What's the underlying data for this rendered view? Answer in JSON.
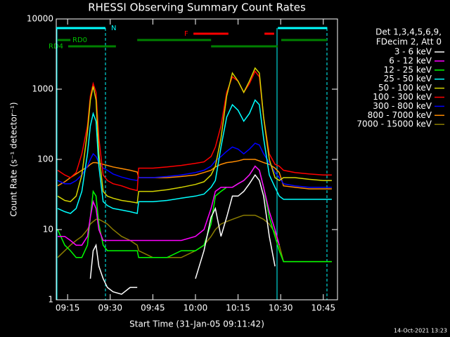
{
  "chart_data": {
    "type": "line",
    "title": "RHESSI Observing Summary Count Rates",
    "x_label": "Start Time (31-Jan-05 09:11:42)",
    "y_label": "Count Rate (s⁻¹ detector⁻¹)",
    "footer": "14-Oct-2021 13:23",
    "legend_title": [
      "Det 1,3,4,5,6,9,",
      "FDecim 2, Att 0"
    ],
    "log_y": true,
    "xlim": [
      11,
      110
    ],
    "ylim": [
      1,
      10000
    ],
    "xticks": [
      {
        "value": 15,
        "label": "09:15"
      },
      {
        "value": 30,
        "label": "09:30"
      },
      {
        "value": 45,
        "label": "09:45"
      },
      {
        "value": 60,
        "label": "10:00"
      },
      {
        "value": 75,
        "label": "10:15"
      },
      {
        "value": 90,
        "label": "10:30"
      },
      {
        "value": 105,
        "label": "10:45"
      }
    ],
    "yticks": [
      1,
      10,
      100,
      1000,
      10000
    ],
    "flags": [
      {
        "label": "N",
        "color": "#00ffff",
        "ranges": [
          [
            11,
            28.3
          ],
          [
            89,
            106.4
          ]
        ]
      },
      {
        "label": "F",
        "color": "#ff0000",
        "ranges": [
          [
            59.3,
            71.6
          ],
          [
            84.3,
            87.7
          ]
        ]
      },
      {
        "label": "RD0",
        "color": "#008000",
        "ranges": [
          [
            11.5,
            16
          ],
          [
            39.5,
            65.5
          ],
          [
            90.2,
            106.3
          ]
        ]
      },
      {
        "label": "RD4",
        "color": "#008000",
        "ranges": [
          [
            15.2,
            32
          ],
          [
            65.5,
            89
          ]
        ]
      }
    ],
    "x": [
      11.5,
      14,
      16,
      18,
      20,
      22,
      23,
      24,
      25,
      26,
      27.5,
      29,
      31,
      34,
      37,
      39.5,
      40,
      45,
      50,
      55,
      60,
      63,
      65.5,
      67,
      69,
      71,
      73,
      75,
      77,
      79,
      81,
      82.5,
      84,
      86,
      88,
      89.5,
      91,
      95,
      100,
      105,
      108
    ],
    "series": [
      {
        "name": "3 - 6 keV",
        "color": "#ffffff",
        "values": [
          null,
          null,
          null,
          null,
          null,
          null,
          2,
          5,
          6,
          3,
          2,
          1.5,
          1.3,
          1.2,
          1.5,
          1.5,
          null,
          null,
          1.5,
          null,
          2,
          5,
          15,
          20,
          8,
          15,
          30,
          30,
          35,
          45,
          60,
          50,
          30,
          8,
          3,
          null,
          null,
          null,
          null,
          null,
          null
        ]
      },
      {
        "name": "6 - 12 keV",
        "color": "#ff00ff",
        "values": [
          8,
          8,
          7,
          6,
          6,
          8,
          15,
          25,
          20,
          10,
          7,
          7,
          7,
          7,
          7,
          7,
          7,
          7,
          7,
          7,
          8,
          10,
          20,
          35,
          40,
          40,
          40,
          45,
          50,
          60,
          80,
          70,
          40,
          18,
          10,
          6,
          null,
          null,
          null,
          null,
          null
        ]
      },
      {
        "name": "12 - 25 keV",
        "color": "#00ff00",
        "values": [
          10,
          6,
          5,
          4,
          4,
          6,
          15,
          35,
          30,
          12,
          6,
          5,
          5,
          5,
          5,
          5,
          4,
          4,
          4,
          5,
          5,
          6,
          12,
          30,
          35,
          40,
          40,
          45,
          50,
          60,
          80,
          70,
          40,
          15,
          8,
          5,
          3.5,
          3.5,
          3.5,
          3.5,
          3.5
        ]
      },
      {
        "name": "25 - 50 keV",
        "color": "#00ffff",
        "values": [
          20,
          18,
          17,
          20,
          35,
          120,
          300,
          450,
          350,
          80,
          25,
          22,
          20,
          19,
          18,
          17,
          25,
          25,
          26,
          28,
          30,
          32,
          40,
          50,
          150,
          400,
          600,
          500,
          350,
          450,
          700,
          600,
          200,
          60,
          40,
          30,
          27,
          27,
          27,
          27,
          27
        ]
      },
      {
        "name": "50 - 100 keV",
        "color": "#d4d400",
        "values": [
          30,
          26,
          25,
          30,
          60,
          250,
          700,
          1100,
          700,
          120,
          35,
          30,
          28,
          26,
          25,
          24,
          35,
          35,
          37,
          40,
          44,
          48,
          60,
          80,
          200,
          800,
          1700,
          1300,
          900,
          1300,
          2000,
          1700,
          400,
          100,
          55,
          50,
          55,
          55,
          52,
          50,
          50
        ]
      },
      {
        "name": "100 - 300 keV",
        "color": "#ff0000",
        "values": [
          70,
          60,
          55,
          65,
          120,
          300,
          800,
          1200,
          900,
          200,
          60,
          50,
          45,
          42,
          38,
          36,
          75,
          75,
          78,
          82,
          88,
          92,
          110,
          150,
          300,
          900,
          1500,
          1300,
          900,
          1200,
          1800,
          1500,
          400,
          120,
          85,
          80,
          70,
          65,
          62,
          60,
          60
        ]
      },
      {
        "name": "300 - 800 keV",
        "color": "#0000ff",
        "values": [
          50,
          45,
          45,
          50,
          60,
          80,
          100,
          120,
          110,
          90,
          75,
          70,
          62,
          56,
          52,
          50,
          55,
          55,
          57,
          60,
          65,
          70,
          80,
          95,
          110,
          130,
          150,
          140,
          120,
          140,
          170,
          160,
          120,
          90,
          65,
          55,
          45,
          42,
          40,
          40,
          40
        ]
      },
      {
        "name": "800 - 7000 keV",
        "color": "#ff8c00",
        "values": [
          42,
          48,
          55,
          62,
          70,
          78,
          85,
          90,
          90,
          88,
          85,
          82,
          78,
          74,
          70,
          66,
          55,
          55,
          55,
          57,
          60,
          65,
          70,
          78,
          85,
          90,
          92,
          95,
          100,
          100,
          100,
          95,
          90,
          85,
          75,
          65,
          42,
          40,
          38,
          38,
          38
        ]
      },
      {
        "name": "7000 - 15000 keV",
        "color": "#8b7d00",
        "values": [
          4,
          5,
          6,
          7,
          8,
          10,
          12,
          13,
          14,
          14,
          13,
          12,
          10,
          8,
          7,
          6,
          5,
          4,
          4,
          4,
          5,
          6,
          8,
          10,
          12,
          13,
          14,
          15,
          16,
          16,
          16,
          15,
          14,
          12,
          9,
          6,
          3.5,
          3.5,
          3.5,
          3.5,
          3.5
        ]
      }
    ]
  }
}
